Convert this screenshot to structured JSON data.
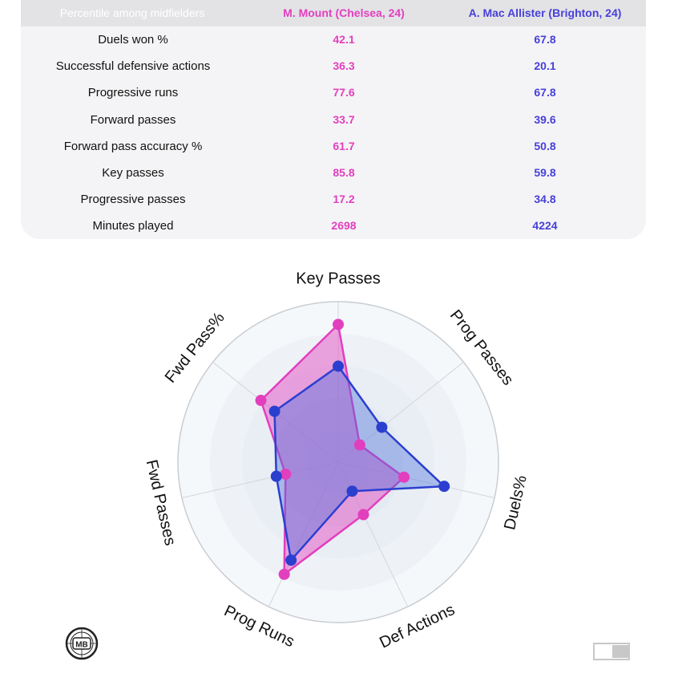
{
  "table": {
    "header": {
      "metric": "Percentile among midfielders",
      "player1": "M. Mount (Chelsea, 24)",
      "player2": "A. Mac Allister (Brighton, 24)"
    },
    "rows": [
      {
        "metric": "Duels won %",
        "p1": "42.1",
        "p2": "67.8"
      },
      {
        "metric": "Successful defensive actions",
        "p1": "36.3",
        "p2": "20.1"
      },
      {
        "metric": "Progressive runs",
        "p1": "77.6",
        "p2": "67.8"
      },
      {
        "metric": "Forward passes",
        "p1": "33.7",
        "p2": "39.6"
      },
      {
        "metric": "Forward pass accuracy %",
        "p1": "61.7",
        "p2": "50.8"
      },
      {
        "metric": "Key passes",
        "p1": "85.8",
        "p2": "59.8"
      },
      {
        "metric": "Progressive passes",
        "p1": "17.2",
        "p2": "34.8"
      },
      {
        "metric": "Minutes played",
        "p1": "2698",
        "p2": "4224"
      }
    ]
  },
  "chart_data": {
    "type": "radar",
    "axes": [
      "Key Passes",
      "Prog Passes",
      "Duels%",
      "Def Actions",
      "Prog Runs",
      "Fwd Passes",
      "Fwd Pass%"
    ],
    "range": [
      0,
      100
    ],
    "grid": true,
    "series": [
      {
        "name": "M. Mount (Chelsea, 24)",
        "color": "#e23fbe",
        "fill": "rgba(226,63,190,0.45)",
        "values": [
          85.8,
          17.2,
          42.1,
          36.3,
          77.6,
          33.7,
          61.7
        ]
      },
      {
        "name": "A. Mac Allister (Brighton, 24)",
        "color": "#2b3fcf",
        "fill": "rgba(70,110,220,0.40)",
        "values": [
          59.8,
          34.8,
          67.8,
          20.1,
          67.8,
          39.6,
          50.8
        ]
      }
    ]
  },
  "logo": {
    "text": "MB"
  },
  "toggle": {
    "state": "on"
  }
}
